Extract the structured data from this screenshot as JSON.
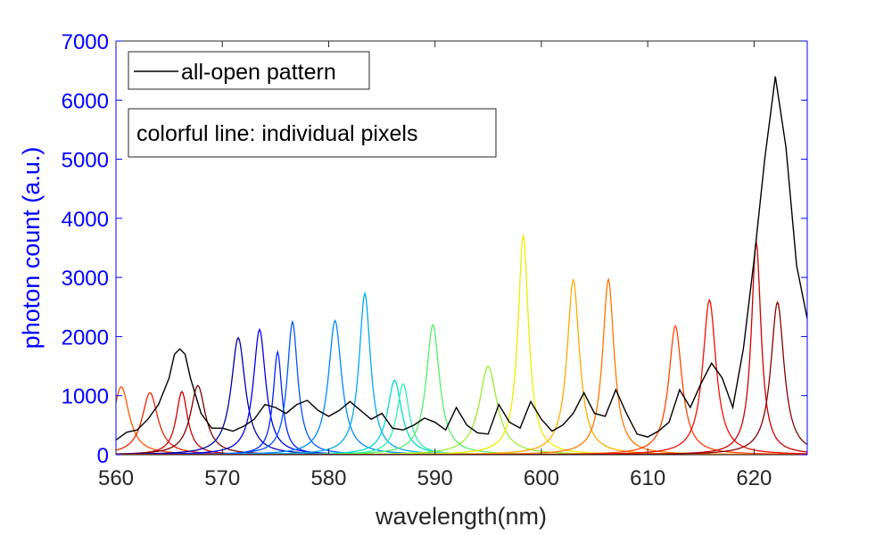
{
  "chart_data": {
    "type": "line",
    "title": "",
    "xlabel": "wavelength(nm)",
    "ylabel": "photon count (a.u.)",
    "xlim": [
      560,
      625
    ],
    "ylim": [
      0,
      7000
    ],
    "xticks": [
      560,
      570,
      580,
      590,
      600,
      610,
      620
    ],
    "yticks": [
      0,
      1000,
      2000,
      3000,
      4000,
      5000,
      6000,
      7000
    ],
    "xtick_labels": [
      "560",
      "570",
      "580",
      "590",
      "600",
      "610",
      "620"
    ],
    "ytick_labels": [
      "0",
      "1000",
      "2000",
      "3000",
      "4000",
      "5000",
      "6000",
      "7000"
    ],
    "grid": false,
    "legend": {
      "entries": [
        "all-open pattern"
      ],
      "placement": "top-left"
    },
    "annotation": "colorful line: individual pixels",
    "colors": {
      "axis_y": "#0000ff",
      "axis_x": "#262626",
      "all_open": "#000000"
    },
    "all_open_series": {
      "name": "all-open pattern",
      "color": "#000000",
      "x": [
        560,
        561,
        562,
        563,
        564,
        565,
        565.5,
        566,
        566.5,
        567,
        568,
        569,
        570,
        571,
        572,
        573,
        574,
        575,
        576,
        577,
        578,
        579,
        580,
        581,
        582,
        583,
        584,
        585,
        586,
        587,
        588,
        589,
        590,
        591,
        592,
        593,
        594,
        595,
        596,
        597,
        598,
        599,
        600,
        601,
        602,
        603,
        604,
        605,
        606,
        607,
        608,
        609,
        610,
        611,
        612,
        613,
        614,
        615,
        616,
        617,
        618,
        619,
        620,
        621,
        622,
        623,
        624,
        625
      ],
      "y": [
        250,
        380,
        420,
        600,
        850,
        1300,
        1700,
        1790,
        1700,
        1300,
        700,
        450,
        450,
        400,
        480,
        600,
        850,
        800,
        700,
        850,
        920,
        750,
        650,
        750,
        900,
        750,
        600,
        700,
        450,
        420,
        500,
        620,
        550,
        420,
        800,
        500,
        370,
        350,
        850,
        550,
        450,
        900,
        600,
        400,
        500,
        700,
        1050,
        700,
        650,
        1100,
        700,
        350,
        300,
        400,
        550,
        1100,
        800,
        1200,
        1550,
        1300,
        800,
        1800,
        3300,
        5000,
        6400,
        5200,
        3200,
        2300
      ]
    },
    "series": [
      {
        "name": "pixel 560.5 nm",
        "center": 560.5,
        "peak": 1150,
        "width": 0.9,
        "color": "#ff5500"
      },
      {
        "name": "pixel 563.2 nm",
        "center": 563.2,
        "peak": 1050,
        "width": 0.9,
        "color": "#ee2200"
      },
      {
        "name": "pixel 566.2 nm",
        "center": 566.2,
        "peak": 1070,
        "width": 0.65,
        "color": "#cc0000"
      },
      {
        "name": "pixel 567.7 nm",
        "center": 567.7,
        "peak": 1170,
        "width": 0.85,
        "color": "#800000"
      },
      {
        "name": "pixel 571.5 nm",
        "center": 571.5,
        "peak": 1980,
        "width": 0.8,
        "color": "#0000aa"
      },
      {
        "name": "pixel 573.5 nm",
        "center": 573.5,
        "peak": 2120,
        "width": 0.7,
        "color": "#0000ee"
      },
      {
        "name": "pixel 575.2 nm",
        "center": 575.2,
        "peak": 1740,
        "width": 0.5,
        "color": "#0022ff"
      },
      {
        "name": "pixel 576.6 nm",
        "center": 576.6,
        "peak": 2250,
        "width": 0.6,
        "color": "#0055ff"
      },
      {
        "name": "pixel 580.6 nm",
        "center": 580.6,
        "peak": 2270,
        "width": 0.75,
        "color": "#0088ff"
      },
      {
        "name": "pixel 583.4 nm",
        "center": 583.4,
        "peak": 2730,
        "width": 0.65,
        "color": "#00aaee"
      },
      {
        "name": "pixel 586.2 nm",
        "center": 586.2,
        "peak": 1260,
        "width": 0.8,
        "color": "#00ddcc"
      },
      {
        "name": "pixel 587.0 nm",
        "center": 587.0,
        "peak": 1200,
        "width": 0.7,
        "color": "#33eeaa"
      },
      {
        "name": "pixel 589.8 nm",
        "center": 589.8,
        "peak": 2200,
        "width": 0.75,
        "color": "#55ee66"
      },
      {
        "name": "pixel 595.0 nm",
        "center": 595.0,
        "peak": 1500,
        "width": 1.0,
        "color": "#99ee33"
      },
      {
        "name": "pixel 598.3 nm",
        "center": 598.3,
        "peak": 3720,
        "width": 0.6,
        "color": "#eeee00"
      },
      {
        "name": "pixel 603.0 nm",
        "center": 603.0,
        "peak": 2960,
        "width": 0.7,
        "color": "#ffaa00"
      },
      {
        "name": "pixel 606.3 nm",
        "center": 606.3,
        "peak": 2970,
        "width": 0.65,
        "color": "#ff7700"
      },
      {
        "name": "pixel 612.6 nm",
        "center": 612.6,
        "peak": 2180,
        "width": 0.75,
        "color": "#ff4400"
      },
      {
        "name": "pixel 615.8 nm",
        "center": 615.8,
        "peak": 2620,
        "width": 0.75,
        "color": "#ee1100"
      },
      {
        "name": "pixel 620.2 nm",
        "center": 620.2,
        "peak": 3600,
        "width": 0.55,
        "color": "#cc0000"
      },
      {
        "name": "pixel 622.2 nm",
        "center": 622.2,
        "peak": 2580,
        "width": 0.75,
        "color": "#880000"
      }
    ]
  }
}
